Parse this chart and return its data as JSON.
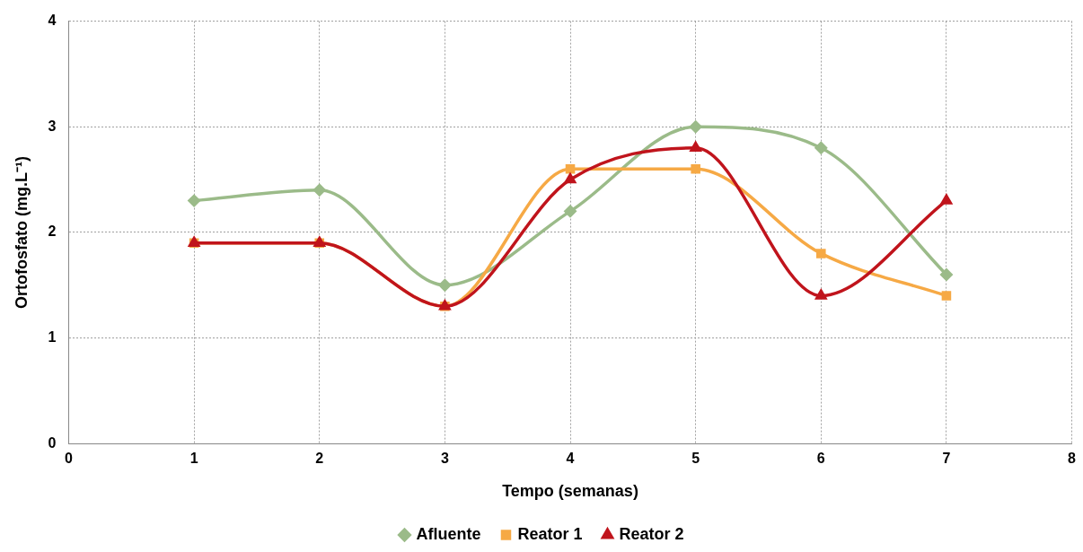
{
  "chart_data": {
    "type": "line",
    "xlabel": "Tempo (semanas)",
    "ylabel": "Ortofosfato (mg.L⁻¹)",
    "x": [
      1,
      2,
      3,
      4,
      5,
      6,
      7
    ],
    "xlim": [
      0,
      8
    ],
    "xticks": [
      0,
      1,
      2,
      3,
      4,
      5,
      6,
      7,
      8
    ],
    "ylim": [
      0,
      4
    ],
    "yticks": [
      0,
      1,
      2,
      3,
      4
    ],
    "grid": true,
    "legend": "bottom",
    "line_style": "solid",
    "series": [
      {
        "name": "Afluente",
        "color": "#9bbb89",
        "marker": "diamond",
        "values": [
          2.3,
          2.4,
          1.5,
          2.2,
          3.0,
          2.8,
          1.6
        ]
      },
      {
        "name": "Reator 1",
        "color": "#f6a945",
        "marker": "square",
        "values": [
          1.9,
          1.9,
          1.3,
          2.6,
          2.6,
          1.8,
          1.4
        ]
      },
      {
        "name": "Reator 2",
        "color": "#c0141c",
        "marker": "triangle",
        "values": [
          1.9,
          1.9,
          1.3,
          2.5,
          2.8,
          1.4,
          2.3
        ]
      }
    ]
  }
}
